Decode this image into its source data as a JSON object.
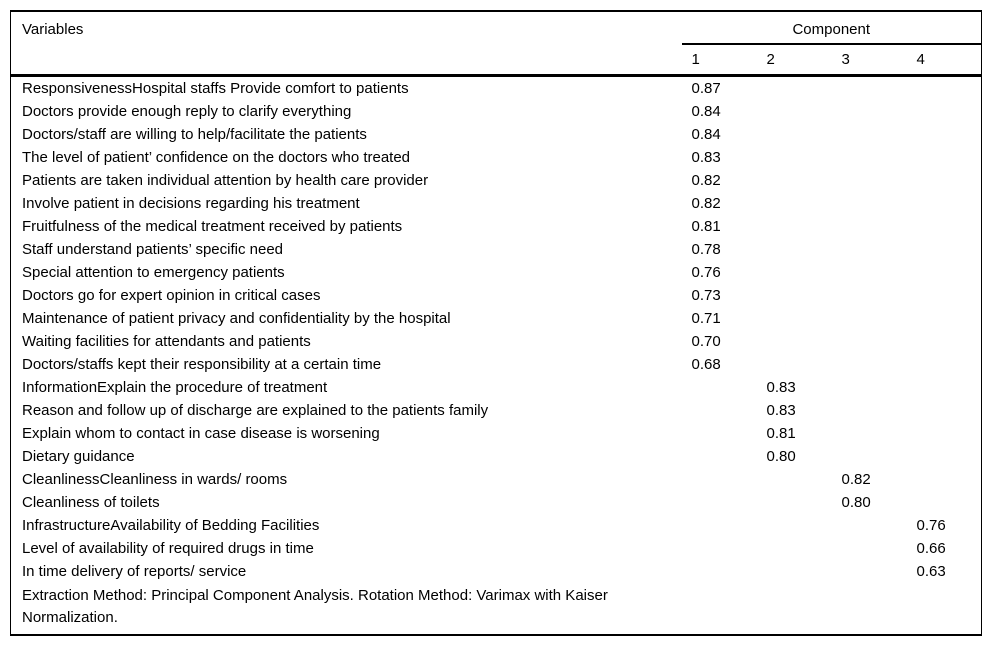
{
  "page": {
    "background_color": "#ffffff",
    "text_color": "#000000",
    "rule_color": "#000000"
  },
  "table": {
    "header": {
      "variables_label": "Variables",
      "component_label": "Component",
      "component_columns": [
        "1",
        "2",
        "3",
        "4"
      ]
    },
    "rows": [
      {
        "variable": "ResponsivenessHospital staffs Provide comfort to patients",
        "loadings": [
          "0.87",
          "",
          "",
          ""
        ]
      },
      {
        "variable": "Doctors provide enough reply to clarify everything",
        "loadings": [
          "0.84",
          "",
          "",
          ""
        ]
      },
      {
        "variable": "Doctors/staff are willing to help/facilitate the patients",
        "loadings": [
          "0.84",
          "",
          "",
          ""
        ]
      },
      {
        "variable": "The level of patient’ confidence on the doctors who treated",
        "loadings": [
          "0.83",
          "",
          "",
          ""
        ]
      },
      {
        "variable": "Patients are taken individual attention by health care provider",
        "loadings": [
          "0.82",
          "",
          "",
          ""
        ]
      },
      {
        "variable": "Involve patient in decisions regarding his treatment",
        "loadings": [
          "0.82",
          "",
          "",
          ""
        ]
      },
      {
        "variable": "Fruitfulness of the medical treatment received by patients",
        "loadings": [
          "0.81",
          "",
          "",
          ""
        ]
      },
      {
        "variable": "Staff understand patients’ specific need",
        "loadings": [
          "0.78",
          "",
          "",
          ""
        ]
      },
      {
        "variable": "Special attention to emergency patients",
        "loadings": [
          "0.76",
          "",
          "",
          ""
        ]
      },
      {
        "variable": "Doctors go for expert opinion in critical cases",
        "loadings": [
          "0.73",
          "",
          "",
          ""
        ]
      },
      {
        "variable": "Maintenance of patient privacy and confidentiality by the hospital",
        "loadings": [
          "0.71",
          "",
          "",
          ""
        ]
      },
      {
        "variable": "Waiting facilities for attendants and patients",
        "loadings": [
          "0.70",
          "",
          "",
          ""
        ]
      },
      {
        "variable": "Doctors/staffs kept their responsibility at a certain time",
        "loadings": [
          "0.68",
          "",
          "",
          ""
        ]
      },
      {
        "variable": "InformationExplain the procedure of treatment",
        "loadings": [
          "",
          "0.83",
          "",
          ""
        ]
      },
      {
        "variable": "Reason and follow up of discharge are explained to the patients family",
        "loadings": [
          "",
          "0.83",
          "",
          ""
        ]
      },
      {
        "variable": "Explain whom to contact in case disease is worsening",
        "loadings": [
          "",
          "0.81",
          "",
          ""
        ]
      },
      {
        "variable": "Dietary guidance",
        "loadings": [
          "",
          "0.80",
          "",
          ""
        ]
      },
      {
        "variable": "CleanlinessCleanliness in wards/ rooms",
        "loadings": [
          "",
          "",
          "0.82",
          ""
        ]
      },
      {
        "variable": "Cleanliness of toilets",
        "loadings": [
          "",
          "",
          "0.80",
          ""
        ]
      },
      {
        "variable": "InfrastructureAvailability of Bedding Facilities",
        "loadings": [
          "",
          "",
          "",
          "0.76"
        ]
      },
      {
        "variable": "Level of availability of required drugs in time",
        "loadings": [
          "",
          "",
          "",
          "0.66"
        ]
      },
      {
        "variable": "In time delivery of reports/ service",
        "loadings": [
          "",
          "",
          "",
          "0.63"
        ]
      }
    ],
    "footnote": "Extraction Method: Principal Component Analysis. Rotation Method: Varimax with Kaiser Normalization."
  }
}
